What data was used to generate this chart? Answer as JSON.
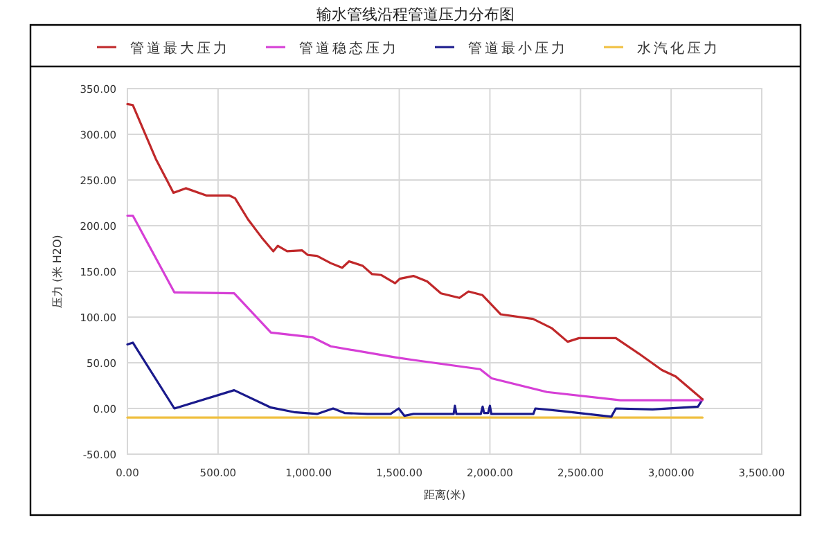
{
  "chart_data": {
    "type": "line",
    "title": "输水管线沿程管道压力分布图",
    "xlabel": "距离(米)",
    "ylabel": "压力 (米 H2O)",
    "xlim": [
      0,
      3500
    ],
    "xticks": [
      {
        "value": 0,
        "label": "0.00"
      },
      {
        "value": 500,
        "label": "500.00"
      },
      {
        "value": 1000,
        "label": "1,000.00"
      },
      {
        "value": 1500,
        "label": "1,500.00"
      },
      {
        "value": 2000,
        "label": "2,000.00"
      },
      {
        "value": 2500,
        "label": "2,500.00"
      },
      {
        "value": 3000,
        "label": "3,000.00"
      },
      {
        "value": 3500,
        "label": "3,500.00"
      }
    ],
    "ylim": [
      -50,
      350
    ],
    "yticks": [
      {
        "value": -50,
        "label": "-50.00"
      },
      {
        "value": 0,
        "label": "0.00"
      },
      {
        "value": 50,
        "label": "50.00"
      },
      {
        "value": 100,
        "label": "100.00"
      },
      {
        "value": 150,
        "label": "150.00"
      },
      {
        "value": 200,
        "label": "200.00"
      },
      {
        "value": 250,
        "label": "250.00"
      },
      {
        "value": 300,
        "label": "300.00"
      },
      {
        "value": 350,
        "label": "350.00"
      }
    ],
    "grid": true,
    "legend": "top",
    "marker": "none",
    "line_style": "solid",
    "series": [
      {
        "name": "管道最大压力",
        "color": "#c0282a",
        "x": [
          0,
          30,
          157,
          254,
          322,
          437,
          563,
          594,
          665,
          741,
          805,
          830,
          881,
          964,
          995,
          1046,
          1122,
          1185,
          1223,
          1299,
          1350,
          1401,
          1477,
          1503,
          1578,
          1654,
          1730,
          1832,
          1882,
          1959,
          2060,
          2238,
          2340,
          2429,
          2492,
          2695,
          2822,
          2949,
          3025,
          3173
        ],
        "values": [
          333,
          332,
          273,
          236,
          241,
          233,
          233,
          230,
          207,
          187,
          172,
          178,
          172,
          173,
          168,
          167,
          159,
          154,
          161,
          156,
          147,
          146,
          137,
          142,
          145,
          139,
          126,
          121,
          128,
          124,
          103,
          98,
          88,
          73,
          77,
          77,
          60,
          42,
          35,
          10
        ]
      },
      {
        "name": "管道稳态压力",
        "color": "#d63fd6",
        "x": [
          0,
          30,
          259,
          589,
          792,
          1020,
          1122,
          1477,
          1578,
          1946,
          2010,
          2315,
          2720,
          3173
        ],
        "values": [
          211,
          211,
          127,
          126,
          83,
          78,
          68,
          56,
          53,
          43,
          33,
          18,
          9,
          9
        ]
      },
      {
        "name": "管道最小压力",
        "color": "#1a1a8c",
        "x": [
          0,
          30,
          259,
          589,
          792,
          919,
          1046,
          1135,
          1198,
          1325,
          1452,
          1497,
          1528,
          1578,
          1800,
          1807,
          1815,
          1950,
          1960,
          1968,
          1990,
          2000,
          2008,
          2240,
          2251,
          2400,
          2670,
          2695,
          2898,
          3148,
          3173
        ],
        "values": [
          70,
          72,
          0,
          20,
          1,
          -4,
          -6,
          0,
          -5,
          -6,
          -6,
          0,
          -8,
          -6,
          -6,
          3,
          -6,
          -6,
          2,
          -5,
          -5,
          3,
          -6,
          -6,
          0,
          -3,
          -9,
          0,
          -1,
          2,
          10
        ]
      },
      {
        "name": "水汽化压力",
        "color": "#f0c040",
        "x": [
          0,
          3173
        ],
        "values": [
          -10,
          -10
        ]
      }
    ]
  }
}
